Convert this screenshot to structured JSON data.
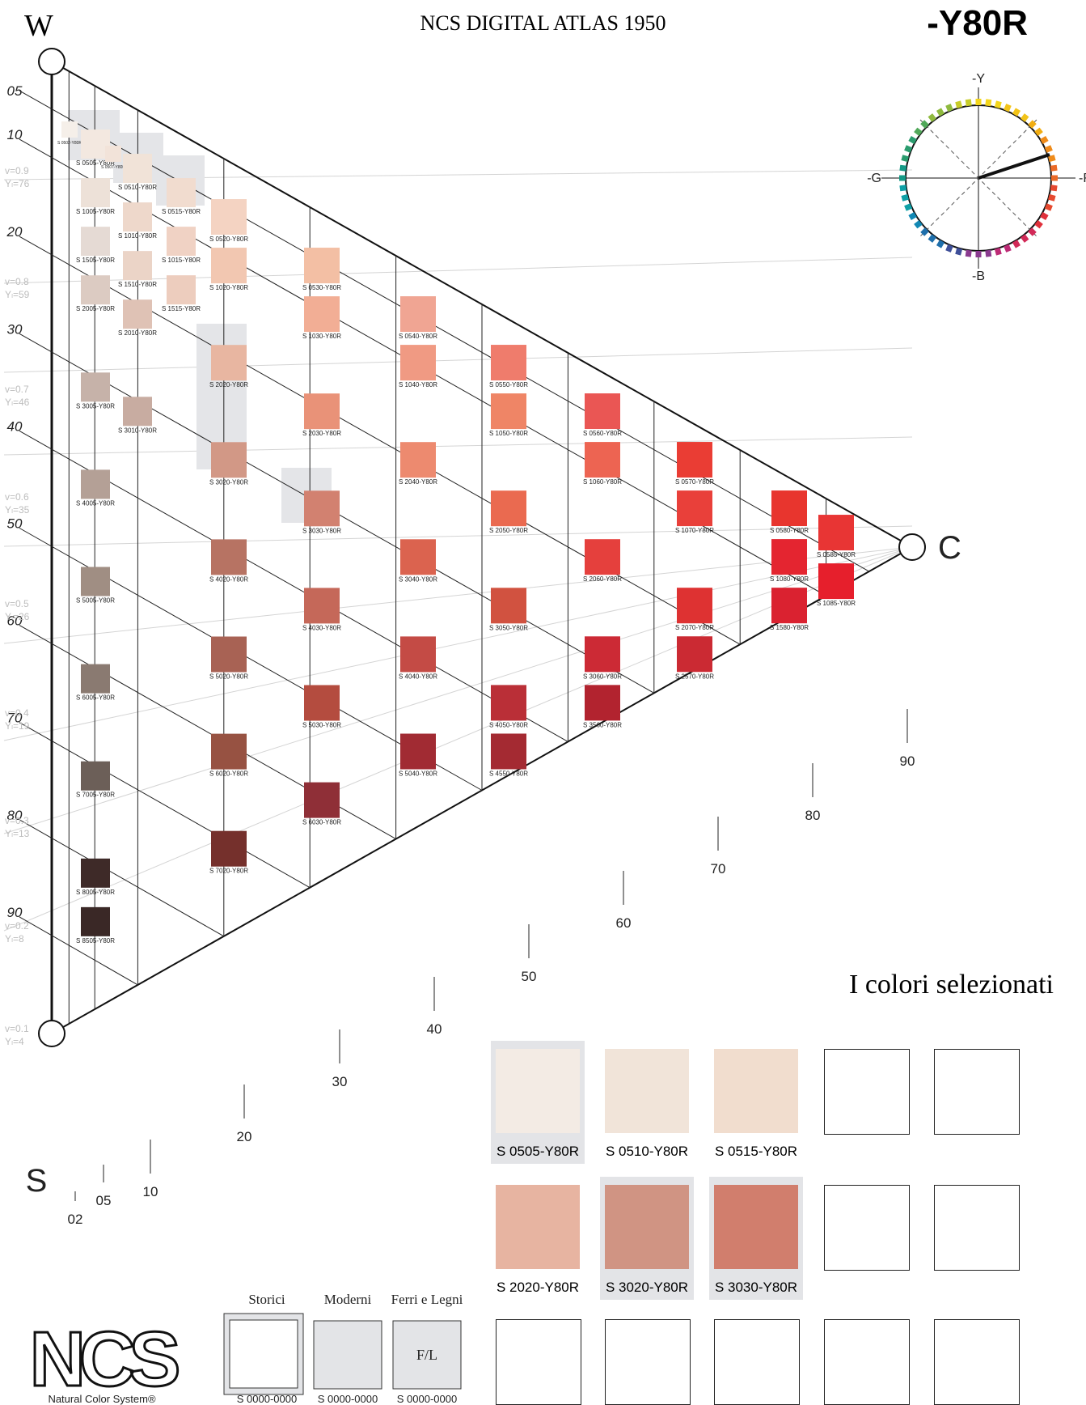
{
  "header": {
    "corner_w": "W",
    "title": "NCS DIGITAL ATLAS 1950",
    "hue": "-Y80R",
    "corner_c": "C",
    "corner_s": "S"
  },
  "hue_circle": {
    "top_label": "-Y",
    "right_label": "-R",
    "bottom_label": "-B",
    "left_label": "-G"
  },
  "scale": {
    "blackness_labels": [
      "05",
      "10",
      "20",
      "30",
      "40",
      "50",
      "60",
      "70",
      "80",
      "90"
    ],
    "v_labels": [
      "v=0.9",
      "v=0.8",
      "v=0.7",
      "v=0.6",
      "v=0.5",
      "v=0.4",
      "v=0.3",
      "v=0.2",
      "v=0.1"
    ],
    "y_labels": [
      "Yₗ=76",
      "Yₗ=59",
      "Yₗ=46",
      "Yₗ=35",
      "Yₗ=26",
      "Yₗ=19",
      "Yₗ=13",
      "Yₗ=8",
      "Yₗ=4"
    ],
    "chroma_labels": [
      "02",
      "05",
      "10",
      "20",
      "30",
      "40",
      "50",
      "60",
      "70",
      "80",
      "90"
    ]
  },
  "swatches": [
    {
      "code": "S 0502-Y80R",
      "color": "#f5efe9"
    },
    {
      "code": "S 0505-Y80R",
      "color": "#f3e8e0"
    },
    {
      "code": "S 0507-Y80R",
      "color": "#f2e3d9"
    },
    {
      "code": "S 0510-Y80R",
      "color": "#f1e3d8"
    },
    {
      "code": "S 0515-Y80R",
      "color": "#f1dccf"
    },
    {
      "code": "S 1005-Y80R",
      "color": "#ede1d8"
    },
    {
      "code": "S 1010-Y80R",
      "color": "#eed8cb"
    },
    {
      "code": "S 1015-Y80R",
      "color": "#f0d2c4"
    },
    {
      "code": "S 1505-Y80R",
      "color": "#e5dad4"
    },
    {
      "code": "S 1510-Y80R",
      "color": "#ebd4c7"
    },
    {
      "code": "S 1515-Y80R",
      "color": "#edcdbe"
    },
    {
      "code": "S 2005-Y80R",
      "color": "#dccbc2"
    },
    {
      "code": "S 2010-Y80R",
      "color": "#dfc2b5"
    },
    {
      "code": "S 0520-Y80R",
      "color": "#f4d3c2"
    },
    {
      "code": "S 1020-Y80R",
      "color": "#f2c7b1"
    },
    {
      "code": "S 2020-Y80R",
      "color": "#e8b6a1"
    },
    {
      "code": "S 3005-Y80R",
      "color": "#c6b2a9"
    },
    {
      "code": "S 3010-Y80R",
      "color": "#c8aca1"
    },
    {
      "code": "S 3020-Y80R",
      "color": "#d29886"
    },
    {
      "code": "S 4005-Y80R",
      "color": "#b4a096"
    },
    {
      "code": "S 4020-Y80R",
      "color": "#b77363"
    },
    {
      "code": "S 5005-Y80R",
      "color": "#a08e83"
    },
    {
      "code": "S 5020-Y80R",
      "color": "#a86254"
    },
    {
      "code": "S 6005-Y80R",
      "color": "#8a7a71"
    },
    {
      "code": "S 6020-Y80R",
      "color": "#975242"
    },
    {
      "code": "S 7005-Y80R",
      "color": "#6c5f58"
    },
    {
      "code": "S 7020-Y80R",
      "color": "#75302c"
    },
    {
      "code": "S 8005-Y80R",
      "color": "#3e2a28"
    },
    {
      "code": "S 8505-Y80R",
      "color": "#3a2826"
    },
    {
      "code": "S 0530-Y80R",
      "color": "#f3bfa4"
    },
    {
      "code": "S 1030-Y80R",
      "color": "#f2ae95"
    },
    {
      "code": "S 2030-Y80R",
      "color": "#e99278"
    },
    {
      "code": "S 3030-Y80R",
      "color": "#d28170"
    },
    {
      "code": "S 4030-Y80R",
      "color": "#c56859"
    },
    {
      "code": "S 5030-Y80R",
      "color": "#b44c3f"
    },
    {
      "code": "S 6030-Y80R",
      "color": "#8f2f37"
    },
    {
      "code": "S 0540-Y80R",
      "color": "#f0a593"
    },
    {
      "code": "S 1040-Y80R",
      "color": "#f09a83"
    },
    {
      "code": "S 2040-Y80R",
      "color": "#ed8a6f"
    },
    {
      "code": "S 3040-Y80R",
      "color": "#db634f"
    },
    {
      "code": "S 4040-Y80R",
      "color": "#c44b45"
    },
    {
      "code": "S 5040-Y80R",
      "color": "#a12b33"
    },
    {
      "code": "S 0550-Y80R",
      "color": "#ef7c6c"
    },
    {
      "code": "S 1050-Y80R",
      "color": "#ef8566"
    },
    {
      "code": "S 2050-Y80R",
      "color": "#ea6a50"
    },
    {
      "code": "S 3050-Y80R",
      "color": "#d15240"
    },
    {
      "code": "S 4050-Y80R",
      "color": "#ba2f37"
    },
    {
      "code": "S 4550-Y80R",
      "color": "#a42a32"
    },
    {
      "code": "S 0560-Y80R",
      "color": "#ea5654"
    },
    {
      "code": "S 1060-Y80R",
      "color": "#ed6452"
    },
    {
      "code": "S 2060-Y80R",
      "color": "#e5403d"
    },
    {
      "code": "S 3060-Y80R",
      "color": "#cc2a35"
    },
    {
      "code": "S 3560-Y80R",
      "color": "#b2232f"
    },
    {
      "code": "S 0570-Y80R",
      "color": "#ea3d34"
    },
    {
      "code": "S 1070-Y80R",
      "color": "#e9403a"
    },
    {
      "code": "S 2070-Y80R",
      "color": "#de3232"
    },
    {
      "code": "S 2570-Y80R",
      "color": "#cb2a33"
    },
    {
      "code": "S 0580-Y80R",
      "color": "#e8352e"
    },
    {
      "code": "S 1080-Y80R",
      "color": "#e42530"
    },
    {
      "code": "S 1580-Y80R",
      "color": "#da2230"
    },
    {
      "code": "S 0585-Y80R",
      "color": "#e83534"
    },
    {
      "code": "S 1085-Y80R",
      "color": "#e61f2c"
    }
  ],
  "selected": {
    "title": "I colori selezionati",
    "colors": [
      {
        "code": "S 0505-Y80R",
        "color": "#f3ebe4",
        "highlighted": true
      },
      {
        "code": "S 0510-Y80R",
        "color": "#f1e4d9",
        "highlighted": false
      },
      {
        "code": "S 0515-Y80R",
        "color": "#f1ddce",
        "highlighted": false
      },
      {
        "code": "",
        "color": "",
        "highlighted": false
      },
      {
        "code": "",
        "color": "",
        "highlighted": false
      },
      {
        "code": "S 2020-Y80R",
        "color": "#e7b4a1",
        "highlighted": false
      },
      {
        "code": "S 3020-Y80R",
        "color": "#d09483",
        "highlighted": true
      },
      {
        "code": "S 3030-Y80R",
        "color": "#d17e6d",
        "highlighted": true
      },
      {
        "code": "",
        "color": "",
        "highlighted": false
      },
      {
        "code": "",
        "color": "",
        "highlighted": false
      },
      {
        "code": "",
        "color": "",
        "highlighted": false
      },
      {
        "code": "",
        "color": "",
        "highlighted": false
      },
      {
        "code": "",
        "color": "",
        "highlighted": false
      },
      {
        "code": "",
        "color": "",
        "highlighted": false
      },
      {
        "code": "",
        "color": "",
        "highlighted": false
      }
    ]
  },
  "categories": {
    "items": [
      {
        "label": "Storici",
        "code": "S 0000-0000",
        "box_text": ""
      },
      {
        "label": "Moderni",
        "code": "S 0000-0000",
        "box_text": ""
      },
      {
        "label": "Ferri e Legni",
        "code": "S 0000-0000",
        "box_text": "F/L"
      }
    ]
  },
  "logo": {
    "text": "NCS",
    "tagline": "Natural Color System®"
  }
}
